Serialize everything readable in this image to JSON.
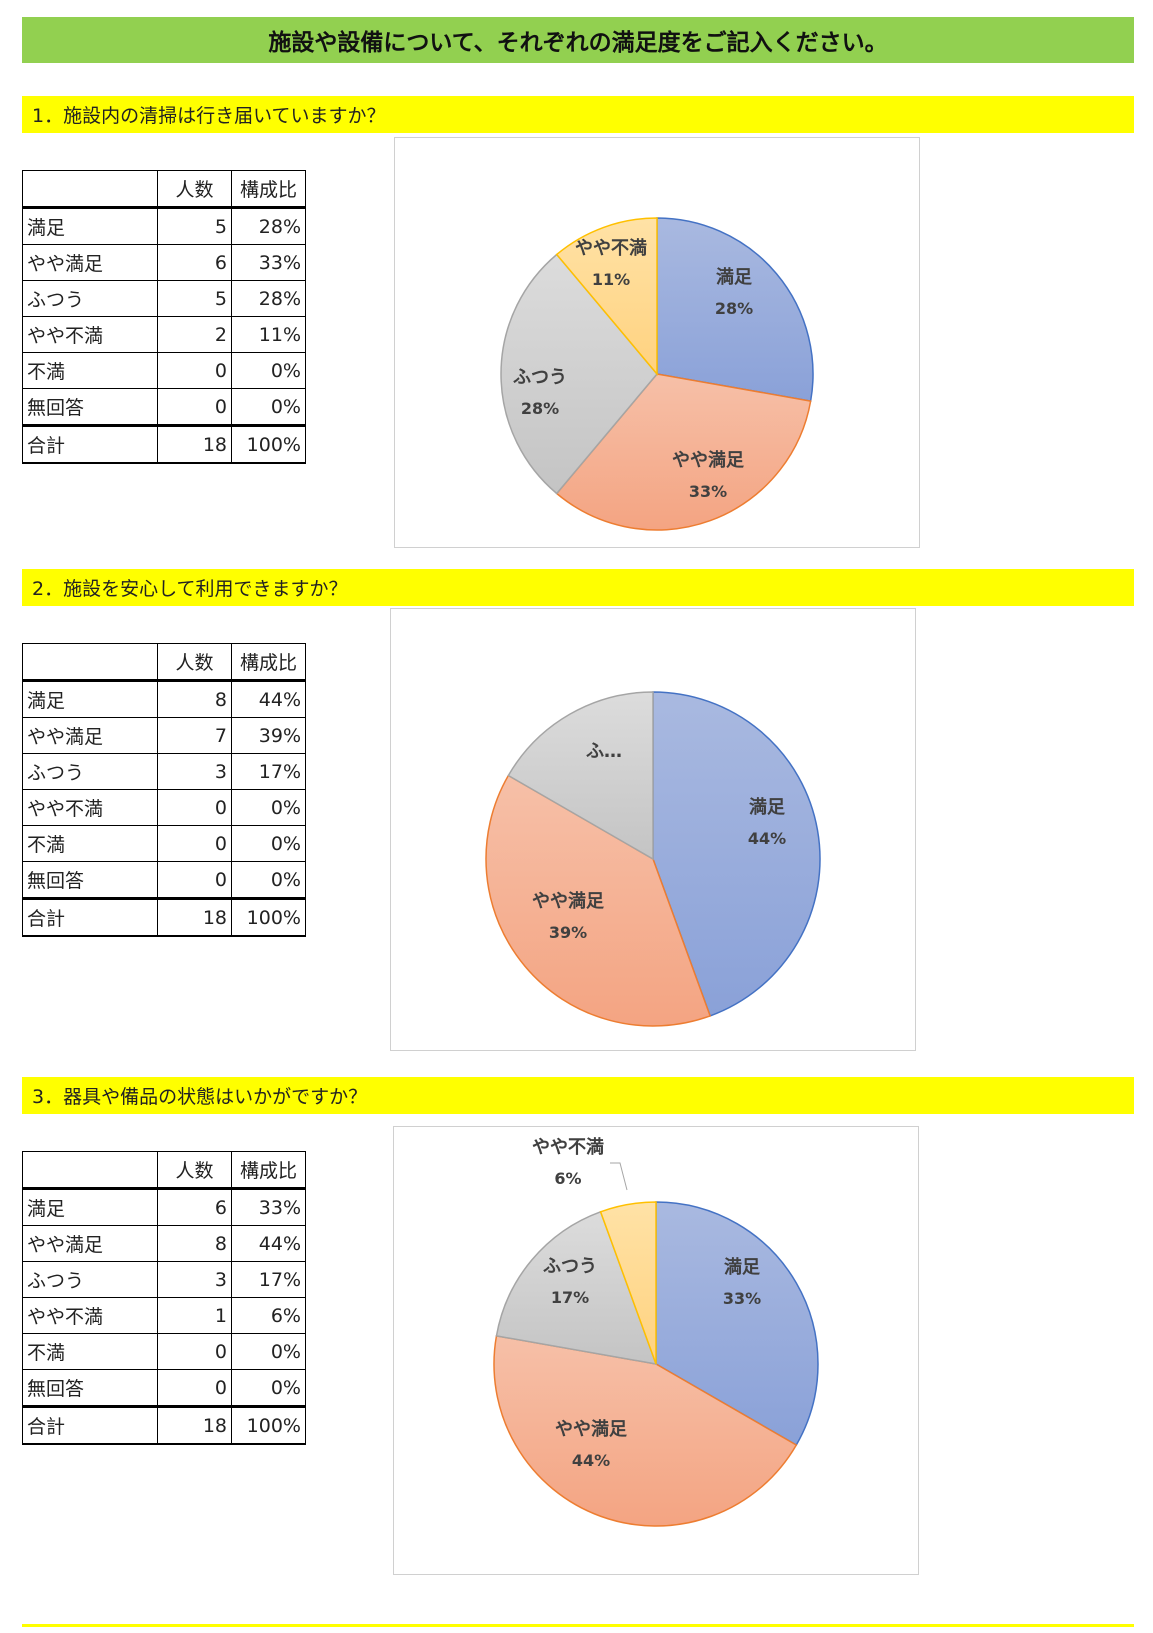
{
  "header": {
    "title": "施設や設備について、それぞれの満足度をご記入ください。"
  },
  "table_headers": {
    "count": "人数",
    "ratio": "構成比"
  },
  "colors": {
    "banner": "#92d050",
    "question_bar": "#ffff00",
    "slices": {
      "満足": [
        "#a9b9e0",
        "#8aa1d8",
        "#4472c4"
      ],
      "やや満足": [
        "#f6c0a8",
        "#f4a482",
        "#ed7d31"
      ],
      "ふつう": [
        "#dcdcdc",
        "#c4c4c4",
        "#a5a5a5"
      ],
      "やや不満": [
        "#ffe2a6",
        "#ffd27f",
        "#ffc000"
      ]
    }
  },
  "questions": [
    {
      "title": "1．施設内の清掃は行き届いていますか？",
      "rows": [
        {
          "label": "満足",
          "count": "5",
          "ratio": "28%"
        },
        {
          "label": "やや満足",
          "count": "6",
          "ratio": "33%"
        },
        {
          "label": "ふつう",
          "count": "5",
          "ratio": "28%"
        },
        {
          "label": "やや不満",
          "count": "2",
          "ratio": "11%"
        },
        {
          "label": "不満",
          "count": "0",
          "ratio": "0%"
        },
        {
          "label": "無回答",
          "count": "0",
          "ratio": "0%"
        },
        {
          "label": "合計",
          "count": "18",
          "ratio": "100%"
        }
      ]
    },
    {
      "title": "2．施設を安心して利用できますか？",
      "rows": [
        {
          "label": "満足",
          "count": "8",
          "ratio": "44%"
        },
        {
          "label": "やや満足",
          "count": "7",
          "ratio": "39%"
        },
        {
          "label": "ふつう",
          "count": "3",
          "ratio": "17%"
        },
        {
          "label": "やや不満",
          "count": "0",
          "ratio": "0%"
        },
        {
          "label": "不満",
          "count": "0",
          "ratio": "0%"
        },
        {
          "label": "無回答",
          "count": "0",
          "ratio": "0%"
        },
        {
          "label": "合計",
          "count": "18",
          "ratio": "100%"
        }
      ]
    },
    {
      "title": "3．器具や備品の状態はいかがですか？",
      "rows": [
        {
          "label": "満足",
          "count": "6",
          "ratio": "33%"
        },
        {
          "label": "やや満足",
          "count": "8",
          "ratio": "44%"
        },
        {
          "label": "ふつう",
          "count": "3",
          "ratio": "17%"
        },
        {
          "label": "やや不満",
          "count": "1",
          "ratio": "6%"
        },
        {
          "label": "不満",
          "count": "0",
          "ratio": "0%"
        },
        {
          "label": "無回答",
          "count": "0",
          "ratio": "0%"
        },
        {
          "label": "合計",
          "count": "18",
          "ratio": "100%"
        }
      ]
    }
  ],
  "chart_data": [
    {
      "type": "pie",
      "categories": [
        "満足",
        "やや満足",
        "ふつう",
        "やや不満"
      ],
      "values": [
        5,
        6,
        5,
        2
      ],
      "data_labels": [
        {
          "name": "満足",
          "pct": "28%"
        },
        {
          "name": "やや満足",
          "pct": "33%"
        },
        {
          "name": "ふつう",
          "pct": "28%"
        },
        {
          "name": "やや不満",
          "pct": "11%"
        }
      ]
    },
    {
      "type": "pie",
      "categories": [
        "満足",
        "やや満足",
        "ふつう"
      ],
      "values": [
        8,
        7,
        3
      ],
      "data_labels": [
        {
          "name": "満足",
          "pct": "44%"
        },
        {
          "name": "やや満足",
          "pct": "39%"
        },
        {
          "name": "ふ…",
          "pct": ""
        }
      ]
    },
    {
      "type": "pie",
      "categories": [
        "満足",
        "やや満足",
        "ふつう",
        "やや不満"
      ],
      "values": [
        6,
        8,
        3,
        1
      ],
      "data_labels": [
        {
          "name": "満足",
          "pct": "33%"
        },
        {
          "name": "やや満足",
          "pct": "44%"
        },
        {
          "name": "ふつう",
          "pct": "17%"
        },
        {
          "name": "やや不満",
          "pct": "6%"
        }
      ],
      "leader_line_on": "やや不満"
    }
  ]
}
